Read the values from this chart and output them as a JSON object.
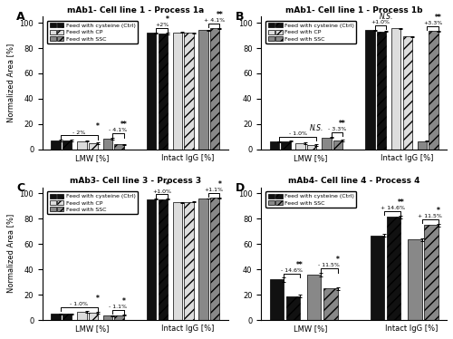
{
  "panels": [
    {
      "label": "A",
      "title": "mAb1- Cell line 1 - Process 1a",
      "lmw_vals": [
        7.0,
        7.0,
        6.5,
        5.0,
        8.5,
        4.0
      ],
      "igg_vals": [
        92.0,
        91.5,
        92.5,
        92.0,
        94.0,
        95.5
      ],
      "lmw_errs": [
        0.5,
        0.5,
        0.5,
        0.5,
        0.5,
        0.5
      ],
      "igg_errs": [
        0.4,
        0.4,
        0.4,
        0.4,
        0.4,
        0.4
      ],
      "n_feeds": 3,
      "lmw_annot1": {
        "text": "- 2%",
        "i1": 0,
        "i2": 3,
        "sig": "*"
      },
      "lmw_annot2": {
        "text": "- 4.1%",
        "i1": 4,
        "i2": 5,
        "sig": "**"
      },
      "igg_annot1": {
        "text": "+2%",
        "i1": 0,
        "i2": 1,
        "sig": "*"
      },
      "igg_annot2": {
        "text": "+ 4.1%",
        "i1": 4,
        "i2": 5,
        "sig": "**"
      },
      "ylim": [
        0,
        105
      ],
      "yticks": [
        0,
        20,
        40,
        60,
        80,
        100
      ]
    },
    {
      "label": "B",
      "title": "mAb1- Cell line 1 - Process 1b",
      "lmw_vals": [
        6.0,
        6.5,
        5.0,
        3.5,
        9.5,
        7.0
      ],
      "igg_vals": [
        94.0,
        93.0,
        95.5,
        89.0,
        6.5,
        93.5
      ],
      "lmw_errs": [
        0.5,
        0.5,
        0.5,
        0.5,
        0.5,
        0.5
      ],
      "igg_errs": [
        0.4,
        0.4,
        0.4,
        0.4,
        0.4,
        0.4
      ],
      "n_feeds": 3,
      "lmw_annot1": {
        "text": "- 1.0%",
        "i1": 0,
        "i2": 3,
        "sig": "N.S."
      },
      "lmw_annot2": {
        "text": "- 3.3%",
        "i1": 4,
        "i2": 5,
        "sig": "**"
      },
      "igg_annot1": {
        "text": "+1.0%",
        "i1": 0,
        "i2": 1,
        "sig": "N.S."
      },
      "igg_annot2": {
        "text": "+3.3%",
        "i1": 4,
        "i2": 5,
        "sig": "**"
      },
      "ylim": [
        0,
        105
      ],
      "yticks": [
        0,
        20,
        40,
        60,
        80,
        100
      ]
    },
    {
      "label": "C",
      "title": "mAb3- Cell line 3 - Process 3",
      "lmw_vals": [
        5.0,
        5.0,
        6.5,
        6.0,
        3.5,
        4.0
      ],
      "igg_vals": [
        95.5,
        95.5,
        93.0,
        93.5,
        96.0,
        96.5
      ],
      "lmw_errs": [
        0.4,
        0.4,
        0.5,
        0.5,
        0.4,
        0.4
      ],
      "igg_errs": [
        0.3,
        0.3,
        0.4,
        0.4,
        0.3,
        0.3
      ],
      "n_feeds": 3,
      "lmw_annot1": {
        "text": "- 1.0%",
        "i1": 0,
        "i2": 3,
        "sig": "*"
      },
      "lmw_annot2": {
        "text": "- 1.1%",
        "i1": 4,
        "i2": 5,
        "sig": "*"
      },
      "igg_annot1": {
        "text": "+1.0%",
        "i1": 0,
        "i2": 1,
        "sig": "*"
      },
      "igg_annot2": {
        "text": "+1.1%",
        "i1": 4,
        "i2": 5,
        "sig": "*"
      },
      "ylim": [
        0,
        105
      ],
      "yticks": [
        0,
        20,
        40,
        60,
        80,
        100
      ]
    },
    {
      "label": "D",
      "title": "mAb4- Cell line 4 - Process 4",
      "lmw_vals": [
        32.0,
        19.0,
        36.0,
        25.0
      ],
      "igg_vals": [
        67.0,
        81.5,
        63.5,
        75.0
      ],
      "lmw_errs": [
        1.5,
        1.2,
        1.5,
        1.2
      ],
      "igg_errs": [
        1.2,
        1.0,
        1.2,
        1.0
      ],
      "n_feeds": 2,
      "lmw_annot1": {
        "text": "- 14.6%",
        "i1": 0,
        "i2": 1,
        "sig": "**"
      },
      "lmw_annot2": {
        "text": "- 11.5%",
        "i1": 2,
        "i2": 3,
        "sig": "*"
      },
      "igg_annot1": {
        "text": "+ 14.6%",
        "i1": 0,
        "i2": 1,
        "sig": "**"
      },
      "igg_annot2": {
        "text": "+ 11.5%",
        "i1": 2,
        "i2": 3,
        "sig": "*"
      },
      "ylim": [
        0,
        105
      ],
      "yticks": [
        0,
        20,
        40,
        60,
        80,
        100
      ]
    }
  ],
  "legend_labels_3": [
    "Feed with cysteine (Ctrl)",
    "Feed with CP",
    "Feed with SSC"
  ],
  "legend_labels_2": [
    "Feed with cysteine (Ctrl)",
    "Feed with SSC"
  ],
  "colors_3": [
    "#111111",
    "#dddddd",
    "#888888"
  ],
  "colors_2": [
    "#111111",
    "#888888"
  ],
  "hatch": "///",
  "ylabel": "Normalized Area [%]",
  "xlabel_lmw": "LMW [%]",
  "xlabel_igg": "Intact IgG [%]"
}
